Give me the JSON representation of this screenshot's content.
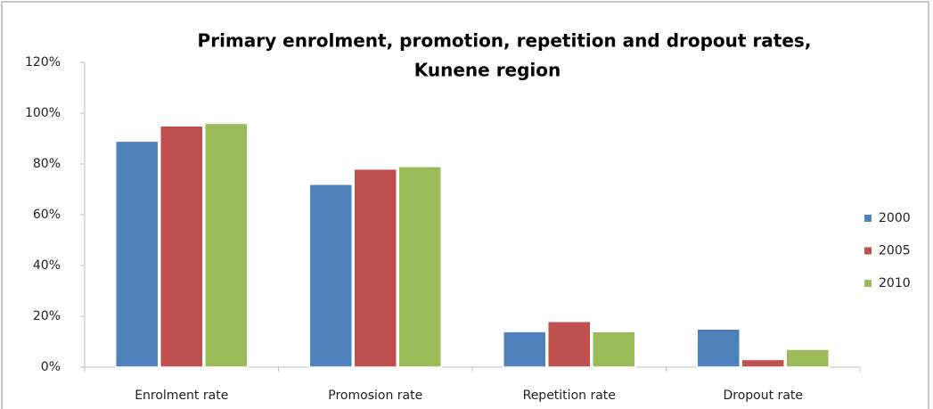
{
  "chart_data": {
    "type": "bar",
    "title": [
      "Primary enrolment, promotion, repetition and dropout rates,",
      "Kunene region"
    ],
    "categories": [
      "Enrolment rate",
      "Promosion rate",
      "Repetition rate",
      "Dropout rate"
    ],
    "series": [
      {
        "name": "2000",
        "color": "#4f81bd",
        "values": [
          89,
          72,
          14,
          15
        ]
      },
      {
        "name": "2005",
        "color": "#c0504d",
        "values": [
          95,
          78,
          18,
          3
        ]
      },
      {
        "name": "2010",
        "color": "#9bbb59",
        "values": [
          96,
          79,
          14,
          7
        ]
      }
    ],
    "ylim": [
      0,
      120
    ],
    "yticks": [
      {
        "value": 0,
        "label": "0%"
      },
      {
        "value": 20,
        "label": "20%"
      },
      {
        "value": 40,
        "label": "40%"
      },
      {
        "value": 60,
        "label": "60%"
      },
      {
        "value": 80,
        "label": "80%"
      },
      {
        "value": 100,
        "label": "100%"
      },
      {
        "value": 120,
        "label": "120%"
      }
    ],
    "legend": "right"
  }
}
